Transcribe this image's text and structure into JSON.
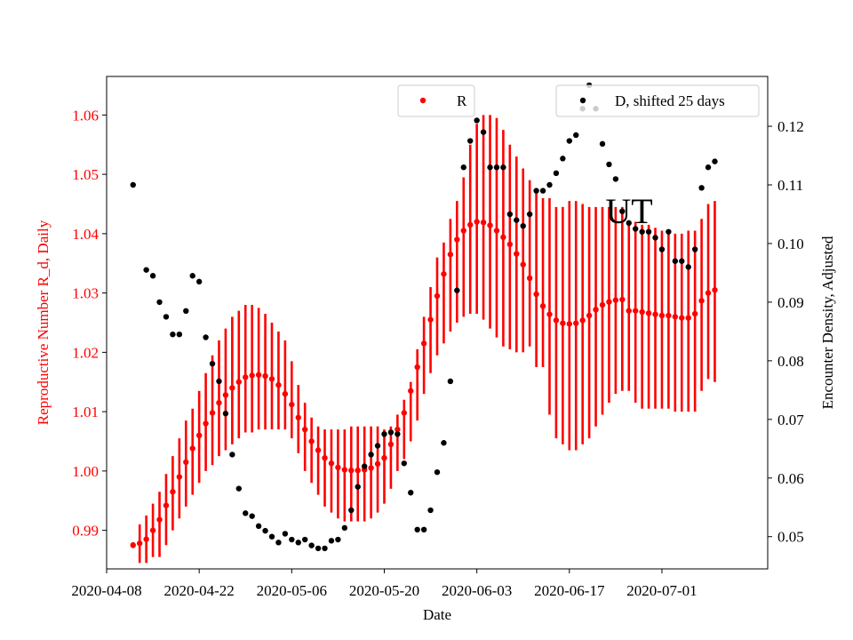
{
  "chart_data": {
    "type": "scatter",
    "xlabel": "Date",
    "ylabel_left": "Reproductive Number R_d, Daily",
    "ylabel_right": "Encounter Density, Adjusted",
    "x_ticks": [
      "2020-04-08",
      "2020-04-22",
      "2020-05-06",
      "2020-05-20",
      "2020-06-03",
      "2020-06-17",
      "2020-07-01"
    ],
    "y_left_ticks": [
      "0.99",
      "1.00",
      "1.01",
      "1.02",
      "1.03",
      "1.04",
      "1.05",
      "1.06"
    ],
    "y_right_ticks": [
      "0.05",
      "0.06",
      "0.07",
      "0.08",
      "0.09",
      "0.10",
      "0.11",
      "0.12"
    ],
    "xlim": [
      "2020-04-08",
      "2020-07-17"
    ],
    "ylim_left": [
      0.9835,
      1.0665
    ],
    "ylim_right": [
      0.0445,
      0.1285
    ],
    "annotation": "UT",
    "colors": {
      "r_series": "#ff0000",
      "d_series": "#000000",
      "left_axis": "#ff0000",
      "right_axis": "#000000"
    },
    "legend": [
      {
        "label": "R",
        "placement": "top-center"
      },
      {
        "label": "D, shifted 25 days",
        "placement": "top-right"
      }
    ],
    "series": [
      {
        "name": "R",
        "axis": "left",
        "x": [
          "2020-04-12",
          "2020-04-13",
          "2020-04-14",
          "2020-04-15",
          "2020-04-16",
          "2020-04-17",
          "2020-04-18",
          "2020-04-19",
          "2020-04-20",
          "2020-04-21",
          "2020-04-22",
          "2020-04-23",
          "2020-04-24",
          "2020-04-25",
          "2020-04-26",
          "2020-04-27",
          "2020-04-28",
          "2020-04-29",
          "2020-04-30",
          "2020-05-01",
          "2020-05-02",
          "2020-05-03",
          "2020-05-04",
          "2020-05-05",
          "2020-05-06",
          "2020-05-07",
          "2020-05-08",
          "2020-05-09",
          "2020-05-10",
          "2020-05-11",
          "2020-05-12",
          "2020-05-13",
          "2020-05-14",
          "2020-05-15",
          "2020-05-16",
          "2020-05-17",
          "2020-05-18",
          "2020-05-19",
          "2020-05-20",
          "2020-05-21",
          "2020-05-22",
          "2020-05-23",
          "2020-05-24",
          "2020-05-25",
          "2020-05-26",
          "2020-05-27",
          "2020-05-28",
          "2020-05-29",
          "2020-05-30",
          "2020-05-31",
          "2020-06-01",
          "2020-06-02",
          "2020-06-03",
          "2020-06-04",
          "2020-06-05",
          "2020-06-06",
          "2020-06-07",
          "2020-06-08",
          "2020-06-09",
          "2020-06-10",
          "2020-06-11",
          "2020-06-12",
          "2020-06-13",
          "2020-06-14",
          "2020-06-15",
          "2020-06-16",
          "2020-06-17",
          "2020-06-18",
          "2020-06-19",
          "2020-06-20",
          "2020-06-21",
          "2020-06-22",
          "2020-06-23",
          "2020-06-24",
          "2020-06-25",
          "2020-06-26",
          "2020-06-27",
          "2020-06-28",
          "2020-06-29",
          "2020-06-30",
          "2020-07-01",
          "2020-07-02",
          "2020-07-03",
          "2020-07-04",
          "2020-07-05",
          "2020-07-06",
          "2020-07-07",
          "2020-07-08",
          "2020-07-09"
        ],
        "y": [
          0.9875,
          0.9878,
          0.9885,
          0.99,
          0.9918,
          0.9942,
          0.9965,
          0.999,
          1.0015,
          1.0038,
          1.006,
          1.008,
          1.0098,
          1.0115,
          1.0128,
          1.014,
          1.015,
          1.0158,
          1.0161,
          1.0162,
          1.016,
          1.0155,
          1.0145,
          1.013,
          1.0112,
          1.009,
          1.007,
          1.005,
          1.0035,
          1.0022,
          1.0013,
          1.0006,
          1.0002,
          1.0001,
          1.0001,
          1.0002,
          1.0005,
          1.0012,
          1.0022,
          1.0045,
          1.007,
          1.0098,
          1.0135,
          1.0175,
          1.0215,
          1.0255,
          1.0295,
          1.0332,
          1.0365,
          1.039,
          1.0405,
          1.0415,
          1.042,
          1.0419,
          1.0414,
          1.0405,
          1.0394,
          1.0382,
          1.0366,
          1.0348,
          1.0325,
          1.0298,
          1.0278,
          1.0264,
          1.0254,
          1.0249,
          1.0248,
          1.0249,
          1.0254,
          1.0262,
          1.0272,
          1.028,
          1.0285,
          1.0288,
          1.0289,
          1.027,
          1.027,
          1.0268,
          1.0266,
          1.0264,
          1.0262,
          1.0262,
          1.026,
          1.0258,
          1.0258,
          1.0265,
          1.0287,
          1.03,
          1.0305
        ],
        "lo": [
          0.987,
          0.9845,
          0.9845,
          0.9855,
          0.9855,
          0.9875,
          0.99,
          0.992,
          0.994,
          0.996,
          0.998,
          1.0,
          1.001,
          1.0025,
          1.0035,
          1.0045,
          1.0055,
          1.0065,
          1.0065,
          1.007,
          1.007,
          1.007,
          1.007,
          1.007,
          1.0055,
          1.003,
          1.0,
          0.998,
          0.996,
          0.994,
          0.993,
          0.992,
          0.9915,
          0.9915,
          0.9915,
          0.9915,
          0.992,
          0.993,
          0.9945,
          0.997,
          1.0,
          1.002,
          1.005,
          1.0085,
          1.013,
          1.0165,
          1.0195,
          1.0215,
          1.0235,
          1.025,
          1.026,
          1.0265,
          1.0265,
          1.0255,
          1.024,
          1.0225,
          1.021,
          1.0205,
          1.02,
          1.02,
          1.021,
          1.0175,
          1.0175,
          1.0095,
          1.0055,
          1.0045,
          1.0035,
          1.0035,
          1.0045,
          1.0055,
          1.0075,
          1.0095,
          1.0115,
          1.013,
          1.0135,
          1.0135,
          1.0115,
          1.0105,
          1.0105,
          1.0105,
          1.0105,
          1.0105,
          1.01,
          1.01,
          1.01,
          1.01,
          1.0135,
          1.0155,
          1.015
        ],
        "hi": [
          0.988,
          0.991,
          0.9925,
          0.9945,
          0.9965,
          0.9995,
          1.0025,
          1.0055,
          1.0085,
          1.0105,
          1.0135,
          1.0165,
          1.0195,
          1.022,
          1.024,
          1.026,
          1.027,
          1.028,
          1.028,
          1.0275,
          1.0265,
          1.025,
          1.0235,
          1.022,
          1.0185,
          1.0145,
          1.0115,
          1.009,
          1.0075,
          1.007,
          1.007,
          1.007,
          1.007,
          1.0075,
          1.0075,
          1.0075,
          1.0075,
          1.0075,
          1.007,
          1.0075,
          1.0095,
          1.012,
          1.015,
          1.0205,
          1.026,
          1.031,
          1.036,
          1.0385,
          1.0425,
          1.0455,
          1.0495,
          1.055,
          1.0585,
          1.06,
          1.06,
          1.0595,
          1.0575,
          1.055,
          1.053,
          1.051,
          1.049,
          1.0475,
          1.046,
          1.046,
          1.0445,
          1.0445,
          1.0455,
          1.0455,
          1.045,
          1.0445,
          1.0445,
          1.0445,
          1.0445,
          1.0445,
          1.0445,
          1.042,
          1.042,
          1.0415,
          1.0415,
          1.041,
          1.0405,
          1.0405,
          1.04,
          1.04,
          1.0405,
          1.0405,
          1.0425,
          1.045,
          1.0455
        ]
      },
      {
        "name": "D, shifted 25 days",
        "axis": "right",
        "x": [
          "2020-04-12",
          "2020-04-14",
          "2020-04-15",
          "2020-04-16",
          "2020-04-17",
          "2020-04-18",
          "2020-04-19",
          "2020-04-20",
          "2020-04-21",
          "2020-04-22",
          "2020-04-23",
          "2020-04-24",
          "2020-04-25",
          "2020-04-26",
          "2020-04-27",
          "2020-04-28",
          "2020-04-29",
          "2020-04-30",
          "2020-05-01",
          "2020-05-02",
          "2020-05-03",
          "2020-05-04",
          "2020-05-05",
          "2020-05-06",
          "2020-05-07",
          "2020-05-08",
          "2020-05-09",
          "2020-05-10",
          "2020-05-11",
          "2020-05-12",
          "2020-05-13",
          "2020-05-14",
          "2020-05-15",
          "2020-05-16",
          "2020-05-17",
          "2020-05-18",
          "2020-05-19",
          "2020-05-20",
          "2020-05-21",
          "2020-05-22",
          "2020-05-23",
          "2020-05-24",
          "2020-05-25",
          "2020-05-26",
          "2020-05-27",
          "2020-05-28",
          "2020-05-29",
          "2020-05-30",
          "2020-05-31",
          "2020-06-01",
          "2020-06-02",
          "2020-06-03",
          "2020-06-04",
          "2020-06-05",
          "2020-06-06",
          "2020-06-07",
          "2020-06-08",
          "2020-06-09",
          "2020-06-10",
          "2020-06-11",
          "2020-06-12",
          "2020-06-13",
          "2020-06-14",
          "2020-06-15",
          "2020-06-16",
          "2020-06-17",
          "2020-06-18",
          "2020-06-19",
          "2020-06-20",
          "2020-06-21",
          "2020-06-22",
          "2020-06-23",
          "2020-06-24",
          "2020-06-25",
          "2020-06-26",
          "2020-06-27",
          "2020-06-28",
          "2020-06-29",
          "2020-06-30",
          "2020-07-01",
          "2020-07-02",
          "2020-07-03",
          "2020-07-04",
          "2020-07-05",
          "2020-07-06",
          "2020-07-07",
          "2020-07-08",
          "2020-07-09"
        ],
        "y": [
          0.11,
          0.0955,
          0.0945,
          0.09,
          0.0875,
          0.0845,
          0.0845,
          0.0885,
          0.0945,
          0.0935,
          0.084,
          0.0795,
          0.0765,
          0.071,
          0.064,
          0.0582,
          0.054,
          0.0535,
          0.0518,
          0.051,
          0.05,
          0.049,
          0.0505,
          0.0495,
          0.049,
          0.0495,
          0.0485,
          0.048,
          0.048,
          0.0493,
          0.0495,
          0.0515,
          0.0545,
          0.0585,
          0.062,
          0.064,
          0.0655,
          0.0675,
          0.0678,
          0.0675,
          0.0625,
          0.0575,
          0.0512,
          0.0512,
          0.0545,
          0.061,
          0.066,
          0.0765,
          0.092,
          0.113,
          0.1175,
          0.121,
          0.119,
          0.113,
          0.113,
          0.113,
          0.105,
          0.104,
          0.103,
          0.105,
          0.109,
          0.109,
          0.11,
          0.112,
          0.1145,
          0.1175,
          0.1185,
          0.123,
          0.127,
          0.123,
          0.117,
          0.1135,
          0.111,
          0.1055,
          0.1035,
          0.1025,
          0.102,
          0.102,
          0.101,
          0.099,
          0.102,
          0.097,
          0.097,
          0.096,
          0.099,
          0.1095,
          0.113,
          0.114
        ]
      }
    ]
  }
}
